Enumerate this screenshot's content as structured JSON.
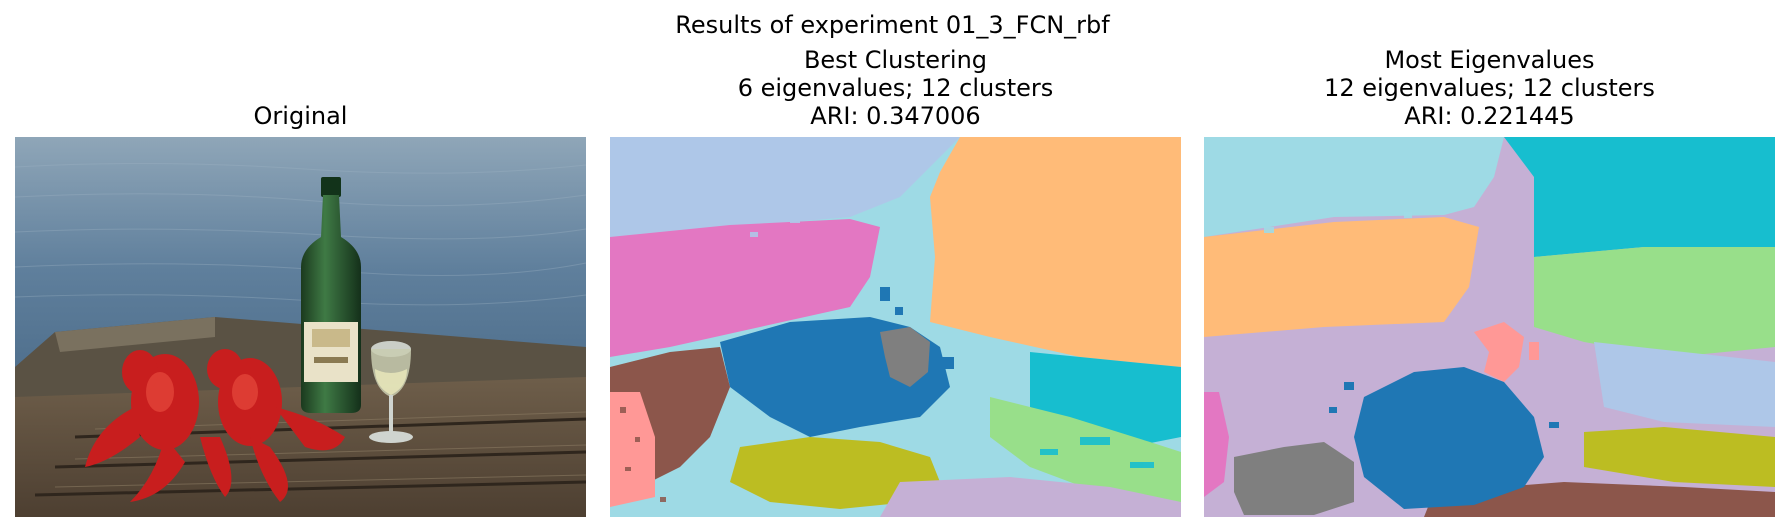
{
  "figure": {
    "suptitle": "Results of experiment 01_3_FCN_rbf"
  },
  "panels": [
    {
      "title_lines": [
        "Original"
      ],
      "image": "original-photo"
    },
    {
      "title_lines": [
        "Best Clustering",
        "6 eigenvalues; 12 clusters",
        "ARI: 0.347006"
      ],
      "image": "segmentation-map"
    },
    {
      "title_lines": [
        "Most Eigenvalues",
        "12 eigenvalues; 12 clusters",
        "ARI: 0.221445"
      ],
      "image": "segmentation-map"
    }
  ],
  "colors": {
    "lavender": "#aec7e8",
    "pink": "#e377c2",
    "peach": "#ffbb78",
    "light_cyan": "#9edae5",
    "blue": "#1f77b4",
    "gray": "#7f7f7f",
    "brown": "#8c564b",
    "salmon": "#ff9896",
    "cyan": "#17becf",
    "light_green": "#98df8a",
    "olive": "#bcbd22",
    "light_purple": "#c5b0d5"
  }
}
